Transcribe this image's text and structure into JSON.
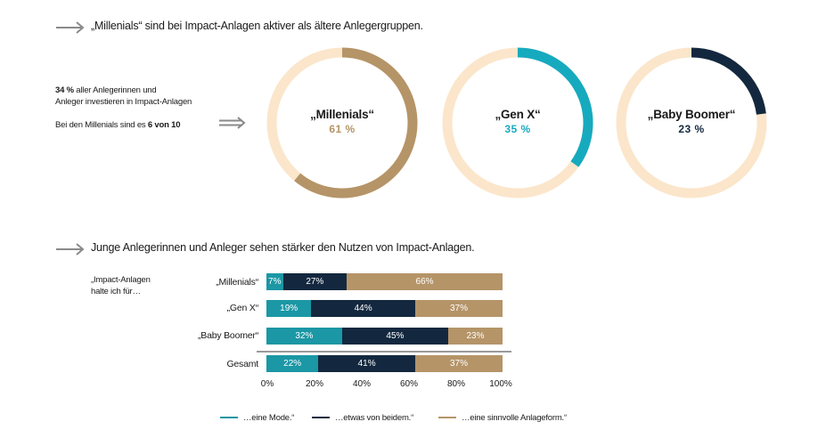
{
  "section1": {
    "heading": "„Millenials“ sind bei Impact-Anlagen aktiver als ältere Anlegergruppen.",
    "stat_line1_bold": "34 %",
    "stat_line1_rest": " aller Anlegerinnen und",
    "stat_line2": "Anleger investieren in Impact-Anlagen",
    "note_prefix": "Bei den Millenials sind es ",
    "note_bold": "6 von 10"
  },
  "section2": {
    "heading": "Junge Anlegerinnen und Anleger sehen stärker den Nutzen von Impact-Anlagen.",
    "question_line1": "„Impact-Anlagen",
    "question_line2": "halte ich für…"
  },
  "colors": {
    "teal": "#1b97a5",
    "navy": "#13283f",
    "tan": "#b59468",
    "cream": "#fbe6cb",
    "arrow": "#8a8a8a",
    "divider": "#9a9a9a",
    "gen_x_donut": "#16aabf"
  },
  "chart_data": [
    {
      "type": "pie",
      "title": "„Millenials“ sind bei Impact-Anlagen aktiver als ältere Anlegergruppen.",
      "donuts": [
        {
          "name": "„Millenials“",
          "value": 61,
          "value_label": "61 %",
          "color": "#b59468"
        },
        {
          "name": "„Gen X“",
          "value": 35,
          "value_label": "35 %",
          "color": "#16aabf"
        },
        {
          "name": "„Baby Boomer“",
          "value": 23,
          "value_label": "23 %",
          "color": "#13283f"
        }
      ]
    },
    {
      "type": "bar",
      "orientation": "horizontal",
      "stacked": true,
      "title": "Junge Anlegerinnen und Anleger sehen stärker den Nutzen von Impact-Anlagen.",
      "categories": [
        "„Millenials“",
        "„Gen X“",
        "„Baby Boomer“",
        "Gesamt"
      ],
      "series": [
        {
          "name": "…eine Mode.“",
          "color": "#1b97a5",
          "values": [
            7,
            19,
            32,
            22
          ],
          "labels": [
            "7%",
            "19%",
            "32%",
            "22%"
          ]
        },
        {
          "name": "…etwas von beidem.“",
          "color": "#13283f",
          "values": [
            27,
            44,
            45,
            41
          ],
          "labels": [
            "27%",
            "44%",
            "45%",
            "41%"
          ]
        },
        {
          "name": "…eine sinnvolle Anlageform.“",
          "color": "#b59468",
          "values": [
            66,
            37,
            23,
            37
          ],
          "labels": [
            "66%",
            "37%",
            "23%",
            "37%"
          ]
        }
      ],
      "xlim": [
        0,
        100
      ],
      "ticks": [
        "0%",
        "20%",
        "40%",
        "60%",
        "80%",
        "100%"
      ],
      "legend_position": "bottom"
    }
  ]
}
